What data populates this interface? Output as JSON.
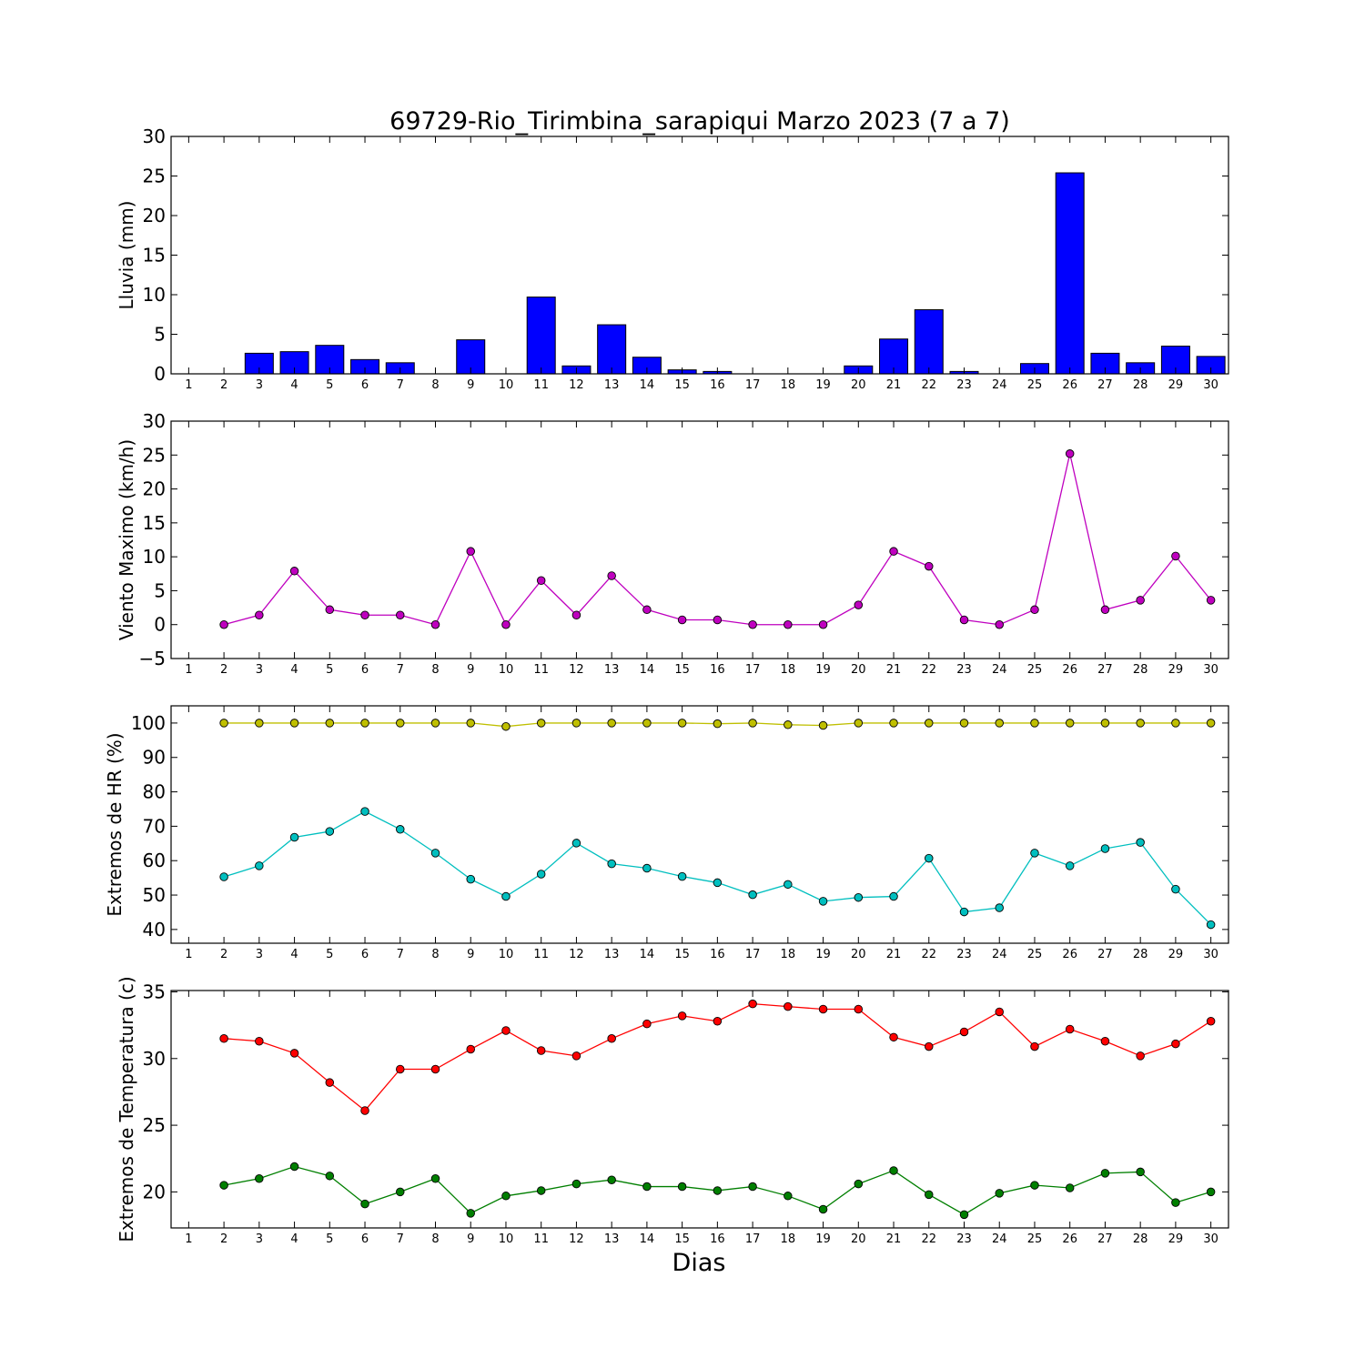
{
  "title": "69729-Rio_Tirimbina_sarapiqui Marzo 2023  (7 a 7)",
  "xlabel": "Dias",
  "chart_data": [
    {
      "type": "bar",
      "ylabel": "Lluvia (mm)",
      "ylim": [
        0,
        30
      ],
      "yticks": [
        0,
        5,
        10,
        15,
        20,
        25,
        30
      ],
      "x": [
        1,
        2,
        3,
        4,
        5,
        6,
        7,
        8,
        9,
        10,
        11,
        12,
        13,
        14,
        15,
        16,
        17,
        18,
        19,
        20,
        21,
        22,
        23,
        24,
        25,
        26,
        27,
        28,
        29,
        30
      ],
      "xticks": [
        "1",
        "2",
        "3",
        "4",
        "5",
        "6",
        "7",
        "8",
        "9",
        "10",
        "11",
        "12",
        "13",
        "14",
        "15",
        "16",
        "17",
        "18",
        "19",
        "20",
        "21",
        "22",
        "23",
        "24",
        "25",
        "26",
        "27",
        "28",
        "29",
        "30"
      ],
      "series": [
        {
          "color": "#0000ff",
          "values": [
            null,
            0,
            2.6,
            2.8,
            3.6,
            1.8,
            1.4,
            0,
            4.3,
            0,
            9.7,
            1.0,
            6.2,
            2.1,
            0.5,
            0.3,
            0,
            0,
            0,
            1.0,
            4.4,
            8.1,
            0.3,
            0,
            1.3,
            25.4,
            2.6,
            1.4,
            3.5,
            2.2
          ]
        }
      ]
    },
    {
      "type": "line",
      "ylabel": "Viento Maximo (km/h)",
      "ylim": [
        -5,
        30
      ],
      "yticks": [
        -5,
        0,
        5,
        10,
        15,
        20,
        25,
        30
      ],
      "yticklabels": [
        "−5",
        "0",
        "5",
        "10",
        "15",
        "20",
        "25",
        "30"
      ],
      "x": [
        1,
        2,
        3,
        4,
        5,
        6,
        7,
        8,
        9,
        10,
        11,
        12,
        13,
        14,
        15,
        16,
        17,
        18,
        19,
        20,
        21,
        22,
        23,
        24,
        25,
        26,
        27,
        28,
        29,
        30
      ],
      "xticks": [
        "1",
        "2",
        "3",
        "4",
        "5",
        "6",
        "7",
        "8",
        "9",
        "10",
        "11",
        "12",
        "13",
        "14",
        "15",
        "16",
        "17",
        "18",
        "19",
        "20",
        "21",
        "22",
        "23",
        "24",
        "25",
        "26",
        "27",
        "28",
        "29",
        "30"
      ],
      "series": [
        {
          "color": "#bf00bf",
          "values": [
            null,
            0,
            1.4,
            7.9,
            2.2,
            1.4,
            1.4,
            0,
            10.8,
            0,
            6.5,
            1.4,
            7.2,
            2.2,
            0.7,
            0.7,
            0,
            0,
            0,
            2.9,
            10.8,
            8.6,
            0.7,
            0,
            2.2,
            25.2,
            2.2,
            3.6,
            10.1,
            3.6
          ]
        }
      ]
    },
    {
      "type": "line",
      "ylabel": "Extremos de HR (%)",
      "ylim": [
        36,
        105
      ],
      "yticks": [
        40,
        50,
        60,
        70,
        80,
        90,
        100
      ],
      "x": [
        1,
        2,
        3,
        4,
        5,
        6,
        7,
        8,
        9,
        10,
        11,
        12,
        13,
        14,
        15,
        16,
        17,
        18,
        19,
        20,
        21,
        22,
        23,
        24,
        25,
        26,
        27,
        28,
        29,
        30
      ],
      "xticks": [
        "1",
        "2",
        "3",
        "4",
        "5",
        "6",
        "7",
        "8",
        "9",
        "10",
        "11",
        "12",
        "13",
        "14",
        "15",
        "16",
        "17",
        "18",
        "19",
        "20",
        "21",
        "22",
        "23",
        "24",
        "25",
        "26",
        "27",
        "28",
        "29",
        "30"
      ],
      "series": [
        {
          "color": "#bfbf00",
          "values": [
            null,
            100,
            100,
            100,
            100,
            100,
            100,
            100,
            100,
            99,
            100,
            100,
            100,
            100,
            100,
            99.8,
            100,
            99.5,
            99.3,
            100,
            100,
            100,
            100,
            100,
            100,
            100,
            100,
            100,
            100,
            100
          ]
        },
        {
          "color": "#00bfbf",
          "values": [
            null,
            55.3,
            58.5,
            66.8,
            68.5,
            74.3,
            69.1,
            62.2,
            54.6,
            49.6,
            56.1,
            65.1,
            59.1,
            57.8,
            55.4,
            53.6,
            50.1,
            53.1,
            48.2,
            49.3,
            49.6,
            60.7,
            45.1,
            46.3,
            62.2,
            58.5,
            63.5,
            65.3,
            51.7,
            41.4
          ]
        }
      ]
    },
    {
      "type": "line",
      "ylabel": "Extremos de Temperatura (c)",
      "ylim": [
        17.3,
        35.1
      ],
      "yticks": [
        20,
        25,
        30,
        35
      ],
      "x": [
        1,
        2,
        3,
        4,
        5,
        6,
        7,
        8,
        9,
        10,
        11,
        12,
        13,
        14,
        15,
        16,
        17,
        18,
        19,
        20,
        21,
        22,
        23,
        24,
        25,
        26,
        27,
        28,
        29,
        30
      ],
      "xticks": [
        "1",
        "2",
        "3",
        "4",
        "5",
        "6",
        "7",
        "8",
        "9",
        "10",
        "11",
        "12",
        "13",
        "14",
        "15",
        "16",
        "17",
        "18",
        "19",
        "20",
        "21",
        "22",
        "23",
        "24",
        "25",
        "26",
        "27",
        "28",
        "29",
        "30"
      ],
      "series": [
        {
          "color": "#ff0000",
          "values": [
            null,
            31.5,
            31.3,
            30.4,
            28.2,
            26.1,
            29.2,
            29.2,
            30.7,
            32.1,
            30.6,
            30.2,
            31.5,
            32.6,
            33.2,
            32.8,
            34.1,
            33.9,
            33.7,
            33.7,
            31.6,
            30.9,
            32.0,
            33.5,
            30.9,
            32.2,
            31.3,
            30.2,
            31.1,
            32.8
          ]
        },
        {
          "color": "#007f00",
          "values": [
            null,
            20.5,
            21.0,
            21.9,
            21.2,
            19.1,
            20.0,
            21.0,
            18.4,
            19.7,
            20.1,
            20.6,
            20.9,
            20.4,
            20.4,
            20.1,
            20.4,
            19.7,
            18.7,
            20.6,
            21.6,
            19.8,
            18.3,
            19.9,
            20.5,
            20.3,
            21.4,
            21.5,
            19.2,
            20.0
          ]
        }
      ]
    }
  ]
}
